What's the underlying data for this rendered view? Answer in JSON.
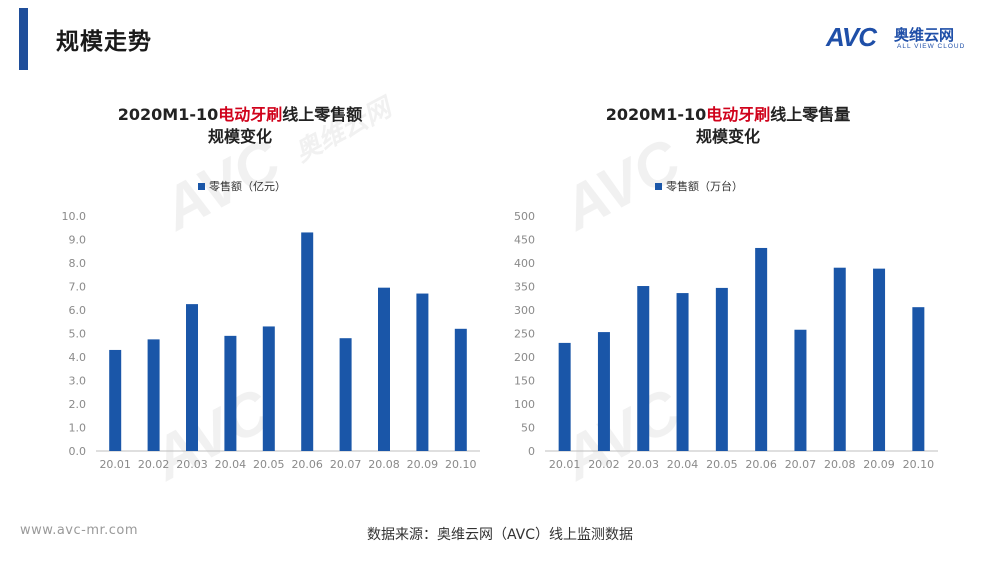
{
  "header": {
    "title": "规模走势"
  },
  "logo": {
    "brand": "AVC",
    "cn_name": "奥维云网",
    "en_name": "ALL VIEW CLOUD"
  },
  "watermark": {
    "brand": "AVC",
    "cn": "奥维云网",
    "en": "ALL VIEW CLOUD"
  },
  "colors": {
    "bar": "#1a56a8",
    "accent_red": "#d0021b",
    "header_bar": "#1f4e9a"
  },
  "footer": {
    "url": "www.avc-mr.com",
    "source": "数据来源：奥维云网（AVC）线上监测数据"
  },
  "chart_data": [
    {
      "type": "bar",
      "title_prefix": "2020M1-10",
      "title_highlight": "电动牙刷",
      "title_suffix": "线上零售额",
      "title_line2": "规模变化",
      "legend": "零售额（亿元）",
      "categories": [
        "20.01",
        "20.02",
        "20.03",
        "20.04",
        "20.05",
        "20.06",
        "20.07",
        "20.08",
        "20.09",
        "20.10"
      ],
      "series": [
        {
          "name": "零售额（亿元）",
          "values": [
            4.3,
            4.75,
            6.25,
            4.9,
            5.3,
            9.3,
            4.8,
            6.95,
            6.7,
            5.2
          ]
        }
      ],
      "ylim": [
        0,
        10
      ],
      "yticks": [
        "0.0",
        "1.0",
        "2.0",
        "3.0",
        "4.0",
        "5.0",
        "6.0",
        "7.0",
        "8.0",
        "9.0",
        "10.0"
      ],
      "grid": false
    },
    {
      "type": "bar",
      "title_prefix": "2020M1-10",
      "title_highlight": "电动牙刷",
      "title_suffix": "线上零售量",
      "title_line2": "规模变化",
      "legend": "零售额（万台）",
      "categories": [
        "20.01",
        "20.02",
        "20.03",
        "20.04",
        "20.05",
        "20.06",
        "20.07",
        "20.08",
        "20.09",
        "20.10"
      ],
      "series": [
        {
          "name": "零售额（万台）",
          "values": [
            230,
            253,
            351,
            336,
            347,
            432,
            258,
            390,
            388,
            306
          ]
        }
      ],
      "ylim": [
        0,
        500
      ],
      "yticks": [
        "0",
        "50",
        "100",
        "150",
        "200",
        "250",
        "300",
        "350",
        "400",
        "450",
        "500"
      ],
      "grid": false
    }
  ]
}
